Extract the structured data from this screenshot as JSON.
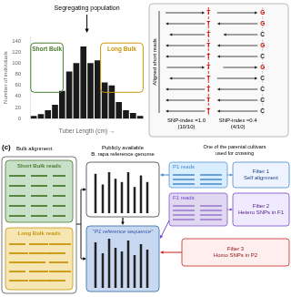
{
  "chart_data": {
    "type": "bar",
    "categories": [
      null,
      null,
      null,
      null,
      null,
      null,
      null,
      null,
      null,
      null,
      null,
      null,
      null,
      null,
      null,
      null
    ],
    "values": [
      5,
      8,
      15,
      25,
      50,
      85,
      100,
      130,
      100,
      105,
      65,
      60,
      30,
      15,
      10,
      5
    ],
    "color": "#1a1a1a",
    "xlabel": "Tuber Length (cm) →",
    "ylabel": "Number of individuals",
    "ylim": [
      0,
      148
    ],
    "yticks": [
      0,
      20,
      40,
      60,
      80,
      100,
      120,
      140
    ],
    "grid": false,
    "tick_labels": "y",
    "annotations": [
      {
        "text": "Short Bulk",
        "color": "#4a7c2f"
      },
      {
        "text": "Long Bulk",
        "color": "#c8960c"
      },
      {
        "text": "Segregating population"
      },
      {
        "text": "T",
        "color": "#cc0000"
      },
      {
        "text": "T",
        "color": "#cc0000"
      },
      {
        "text": "T",
        "color": "#cc0000"
      },
      {
        "text": "T",
        "color": "#cc0000"
      },
      {
        "text": "T",
        "color": "#cc0000"
      },
      {
        "text": "T",
        "color": "#cc0000"
      },
      {
        "text": "T",
        "color": "#cc0000"
      },
      {
        "text": "T",
        "color": "#cc0000"
      },
      {
        "text": "T",
        "color": "#cc0000"
      },
      {
        "text": "T",
        "color": "#cc0000"
      },
      {
        "text": "G",
        "color": "#cc0000"
      },
      {
        "text": "G",
        "color": "#cc0000"
      },
      {
        "text": "C",
        "color": "#1a1a1a"
      },
      {
        "text": "G",
        "color": "#cc0000"
      },
      {
        "text": "C",
        "color": "#1a1a1a"
      },
      {
        "text": "G",
        "color": "#cc0000"
      },
      {
        "text": "C",
        "color": "#1a1a1a"
      },
      {
        "text": "C",
        "color": "#1a1a1a"
      },
      {
        "text": "C",
        "color": "#1a1a1a"
      },
      {
        "text": "C",
        "color": "#1a1a1a"
      },
      {
        "text": "SNP-index =1.0\n(10/10)"
      },
      {
        "text": "SNP-index ≈0.4\n(4/10)"
      },
      {
        "text": "Aligned short reads"
      },
      {
        "text": "(c)"
      },
      {
        "text": "Bulk alignment"
      },
      {
        "text": "Publicly available\nB. rapa reference genome"
      },
      {
        "text": "One of the parental cultivars\nused for crossing"
      },
      {
        "text": "Short Bulk reads",
        "color": "#4a7c2f"
      },
      {
        "text": "Long Bulk reads",
        "color": "#c8960c"
      },
      {
        "text": "\"P1 reference sequence\"",
        "color": "#3355aa"
      },
      {
        "text": "P1 reads",
        "color": "#4488cc"
      },
      {
        "text": "F1 reads",
        "color": "#7744cc"
      },
      {
        "text": "Filter 1\nSelf alignment",
        "color": "#224488"
      },
      {
        "text": "Filter 2\nHetero SNPs in F1",
        "color": "#552288"
      },
      {
        "text": "Filter 3\nHomo SNPs in P2",
        "color": "#881111"
      }
    ]
  }
}
